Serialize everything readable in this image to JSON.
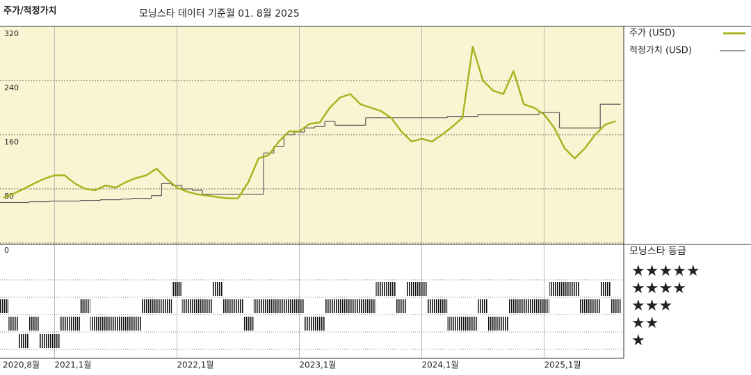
{
  "chart_data": {
    "type": "line",
    "title": "주가/적정가치",
    "subtitle": "모닝스타 데이터 기준월 01. 8월 2025",
    "x": [
      "2020-08",
      "2020-09",
      "2020-10",
      "2020-11",
      "2020-12",
      "2021-01",
      "2021-02",
      "2021-03",
      "2021-04",
      "2021-05",
      "2021-06",
      "2021-07",
      "2021-08",
      "2021-09",
      "2021-10",
      "2021-11",
      "2021-12",
      "2022-01",
      "2022-02",
      "2022-03",
      "2022-04",
      "2022-05",
      "2022-06",
      "2022-07",
      "2022-08",
      "2022-09",
      "2022-10",
      "2022-11",
      "2022-12",
      "2023-01",
      "2023-02",
      "2023-03",
      "2023-04",
      "2023-05",
      "2023-06",
      "2023-07",
      "2023-08",
      "2023-09",
      "2023-10",
      "2023-11",
      "2023-12",
      "2024-01",
      "2024-02",
      "2024-03",
      "2024-04",
      "2024-05",
      "2024-06",
      "2024-07",
      "2024-08",
      "2024-09",
      "2024-10",
      "2024-11",
      "2024-12",
      "2025-01",
      "2025-02",
      "2025-03",
      "2025-04",
      "2025-05",
      "2025-06",
      "2025-07",
      "2025-08"
    ],
    "xticks": [
      {
        "value": "2020-08",
        "label": "2020,8월"
      },
      {
        "value": "2021-01",
        "label": "2021,1월"
      },
      {
        "value": "2022-01",
        "label": "2022,1월"
      },
      {
        "value": "2023-01",
        "label": "2023,1월"
      },
      {
        "value": "2024-01",
        "label": "2024,1월"
      },
      {
        "value": "2025-01",
        "label": "2025,1월"
      }
    ],
    "ylim": [
      0,
      320
    ],
    "yticks": [
      0,
      80,
      160,
      240,
      320
    ],
    "grid": true,
    "series": [
      {
        "name": "주가 (USD)",
        "color": "#a9b320",
        "values": [
          67,
          73,
          80,
          88,
          95,
          100,
          100,
          88,
          80,
          78,
          85,
          82,
          90,
          96,
          100,
          110,
          95,
          82,
          76,
          72,
          70,
          68,
          66,
          66,
          90,
          125,
          130,
          150,
          165,
          165,
          176,
          178,
          200,
          215,
          220,
          205,
          200,
          195,
          185,
          165,
          150,
          154,
          150,
          160,
          172,
          185,
          290,
          240,
          225,
          220,
          254,
          205,
          200,
          190,
          170,
          140,
          125,
          140,
          160,
          175,
          180
        ]
      },
      {
        "name": "적정가치 (USD)",
        "color": "#555555",
        "values": [
          60,
          60,
          60,
          61,
          61,
          62,
          62,
          62,
          63,
          63,
          64,
          64,
          65,
          66,
          66,
          70,
          88,
          85,
          80,
          78,
          72,
          72,
          72,
          72,
          72,
          72,
          133,
          143,
          160,
          164,
          170,
          172,
          180,
          174,
          174,
          174,
          185,
          185,
          185,
          185,
          185,
          185,
          185,
          185,
          187,
          187,
          187,
          190,
          190,
          190,
          190,
          190,
          190,
          193,
          193,
          170,
          170,
          170,
          170,
          205,
          205
        ]
      }
    ],
    "rating": {
      "title": "모닝스타 등급",
      "levels": [
        5,
        4,
        3,
        2,
        1
      ],
      "level_labels": [
        "★★★★★",
        "★★★★",
        "★★★",
        "★★",
        "★"
      ],
      "values": [
        3,
        2,
        1,
        2,
        1,
        1,
        2,
        2,
        3,
        2,
        2,
        2,
        2,
        2,
        3,
        3,
        3,
        4,
        3,
        3,
        3,
        4,
        3,
        3,
        2,
        3,
        3,
        3,
        3,
        3,
        2,
        2,
        3,
        3,
        3,
        3,
        3,
        4,
        4,
        3,
        4,
        4,
        3,
        3,
        2,
        2,
        2,
        3,
        2,
        2,
        3,
        3,
        3,
        3,
        4,
        4,
        4,
        3,
        3,
        4,
        3
      ]
    }
  }
}
